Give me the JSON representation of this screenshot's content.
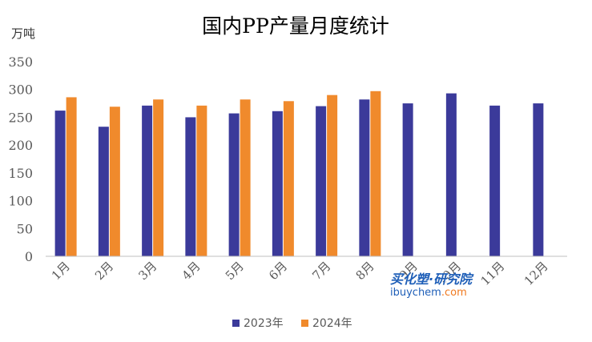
{
  "chart_data": {
    "type": "bar",
    "title": "国内PP产量月度统计",
    "ylabel": "万吨",
    "xlabel": "",
    "categories": [
      "1月",
      "2月",
      "3月",
      "4月",
      "5月",
      "6月",
      "7月",
      "8月",
      "9月",
      "10月",
      "11月",
      "12月"
    ],
    "series": [
      {
        "name": "2023年",
        "color": "#3b3a9a",
        "values": [
          262,
          233,
          271,
          250,
          257,
          261,
          270,
          282,
          275,
          293,
          271,
          275
        ]
      },
      {
        "name": "2024年",
        "color": "#f08a2c",
        "values": [
          286,
          269,
          282,
          271,
          282,
          279,
          290,
          297,
          null,
          null,
          null,
          null
        ]
      }
    ],
    "ylim": [
      0,
      350
    ],
    "yticks": [
      0,
      50,
      100,
      150,
      200,
      250,
      300,
      350
    ],
    "grid": false,
    "legend_position": "bottom"
  },
  "watermark": {
    "main": "买化塑·研究院",
    "url_prefix": "ibuychem",
    "url_suffix": ".com"
  }
}
